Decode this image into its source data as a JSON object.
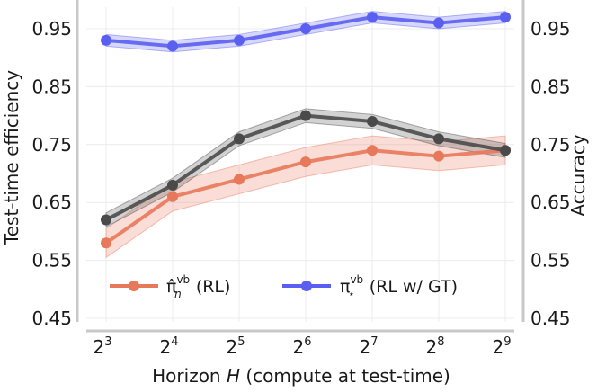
{
  "chart_data": {
    "type": "line",
    "x_tick_labels": [
      {
        "base": "2",
        "exp": "3"
      },
      {
        "base": "2",
        "exp": "4"
      },
      {
        "base": "2",
        "exp": "5"
      },
      {
        "base": "2",
        "exp": "6"
      },
      {
        "base": "2",
        "exp": "7"
      },
      {
        "base": "2",
        "exp": "8"
      },
      {
        "base": "2",
        "exp": "9"
      }
    ],
    "x": [
      8,
      16,
      32,
      64,
      128,
      256,
      512
    ],
    "xlabel": {
      "pre": "Horizon ",
      "var": "H",
      "post": " (compute at test-time)"
    },
    "ylabel_left": "Test-time efficiency",
    "ylabel_right": "Accuracy",
    "ylim": [
      0.45,
      1.0
    ],
    "y_ticks": [
      0.45,
      0.55,
      0.65,
      0.75,
      0.85,
      0.95
    ],
    "y_tick_labels": [
      "0.45",
      "0.55",
      "0.65",
      "0.75",
      "0.85",
      "0.95"
    ],
    "series": [
      {
        "id": "gray",
        "name": "",
        "color": "#4a4a4a",
        "values": [
          0.62,
          0.68,
          0.76,
          0.8,
          0.79,
          0.76,
          0.74
        ],
        "band": 0.012
      },
      {
        "id": "orange",
        "name": "RL",
        "legend_symbol": {
          "base": "π̂",
          "sup": "vb",
          "sub": "n"
        },
        "legend_text": " (RL)",
        "color": "#e8785a",
        "values": [
          0.58,
          0.66,
          0.69,
          0.72,
          0.74,
          0.73,
          0.74
        ],
        "band": 0.025
      },
      {
        "id": "blue",
        "name": "RL w/ GT",
        "legend_symbol": {
          "base": "π",
          "sup": "vb",
          "sub": "⋆"
        },
        "legend_text": " (RL w/ GT)",
        "color": "#5b5ff0",
        "values": [
          0.93,
          0.92,
          0.93,
          0.95,
          0.97,
          0.96,
          0.97
        ],
        "band": 0.01
      }
    ]
  }
}
